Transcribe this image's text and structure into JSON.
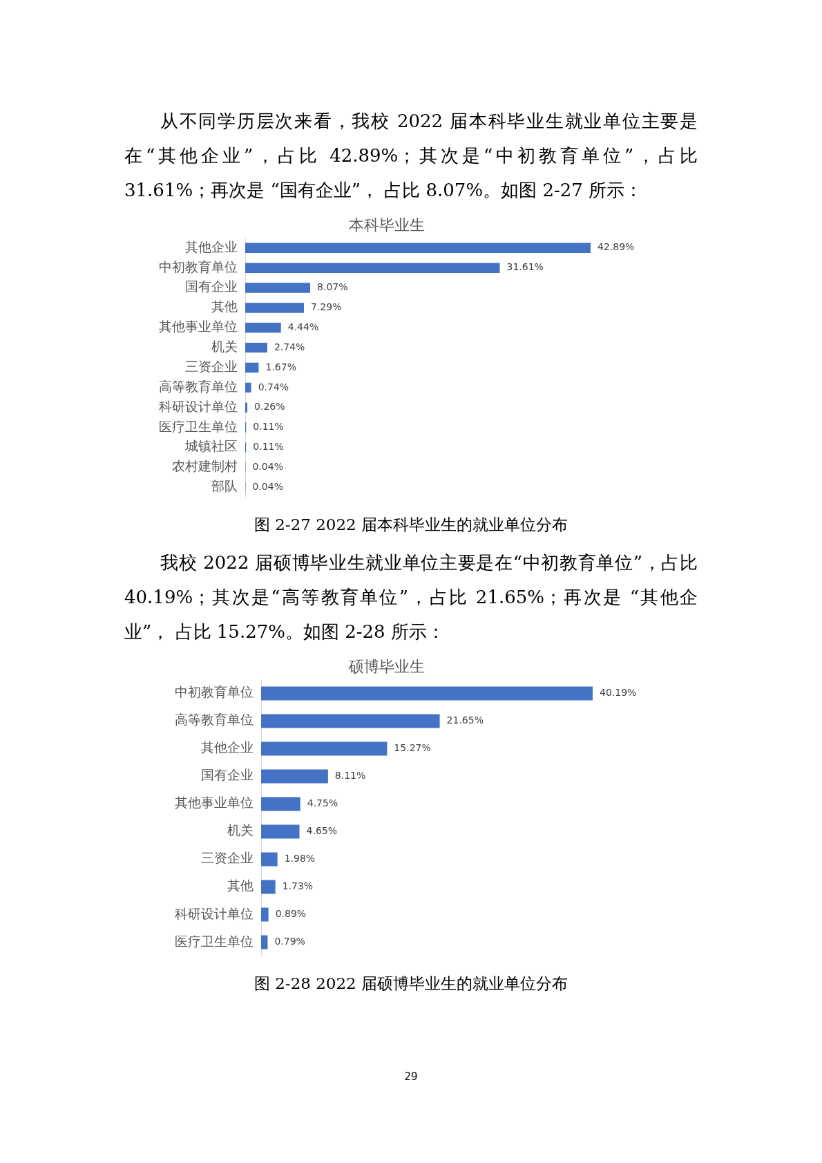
{
  "chart_data": [
    {
      "type": "bar",
      "orientation": "horizontal",
      "title": "本科毕业生",
      "color": "#4472c4",
      "tick_labels": "y",
      "legend": false,
      "categories": [
        "其他企业",
        "中初教育单位",
        "国有企业",
        "其他",
        "其他事业单位",
        "机关",
        "三资企业",
        "高等教育单位",
        "科研设计单位",
        "医疗卫生单位",
        "城镇社区",
        "农村建制村",
        "部队"
      ],
      "values": [
        42.89,
        31.61,
        8.07,
        7.29,
        4.44,
        2.74,
        1.67,
        0.74,
        0.26,
        0.11,
        0.11,
        0.04,
        0.04
      ],
      "value_labels": [
        "42.89%",
        "31.61%",
        "8.07%",
        "7.29%",
        "4.44%",
        "2.74%",
        "1.67%",
        "0.74%",
        "0.26%",
        "0.11%",
        "0.11%",
        "0.04%",
        "0.04%"
      ],
      "annotations": [
        "从不同学历层次来看，我校 2022 届本科毕业生就业单位主要是在“其他企业”，占比 42.89%；其次是“中初教育单位”，占比 31.61%；再次是 “国有企业”， 占比 8.07%。如图 2-27 所示：",
        "图 2-27 2022 届本科毕业生的就业单位分布"
      ]
    },
    {
      "type": "bar",
      "orientation": "horizontal",
      "title": "硕博毕业生",
      "color": "#4472c4",
      "tick_labels": "y",
      "legend": false,
      "categories": [
        "中初教育单位",
        "高等教育单位",
        "其他企业",
        "国有企业",
        "其他事业单位",
        "机关",
        "三资企业",
        "其他",
        "科研设计单位",
        "医疗卫生单位"
      ],
      "values": [
        40.19,
        21.65,
        15.27,
        8.11,
        4.75,
        4.65,
        1.98,
        1.73,
        0.89,
        0.79
      ],
      "value_labels": [
        "40.19%",
        "21.65%",
        "15.27%",
        "8.11%",
        "4.75%",
        "4.65%",
        "1.98%",
        "1.73%",
        "0.89%",
        "0.79%"
      ],
      "annotations": [
        "我校 2022 届硕博毕业生就业单位主要是在“中初教育单位”，占比 40.19%；其次是“高等教育单位”，占比 21.65%；再次是 “其他企业”， 占比 15.27%。如图 2-28 所示：",
        "图 2-28 2022 届硕博毕业生的就业单位分布",
        "29"
      ]
    }
  ]
}
